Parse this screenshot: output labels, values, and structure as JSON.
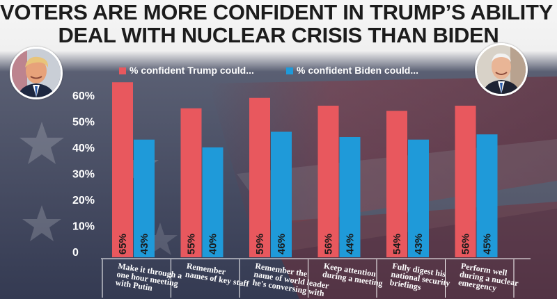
{
  "headline": {
    "line1": "VOTERS ARE MORE CONFIDENT IN TRUMP’S ABILITY TO",
    "line2": "DEAL WITH NUCLEAR CRISIS THAN BIDEN"
  },
  "colors": {
    "trump": "#e8585e",
    "biden": "#1f9ad9",
    "background_top": "#f4f4f4",
    "background_flag_blue": "#2d3757",
    "background_flag_red": "#7a2c35"
  },
  "icons": [
    "trump-portrait-icon",
    "biden-portrait-icon"
  ],
  "chart_data": {
    "type": "bar",
    "title": "",
    "xlabel": "",
    "ylabel": "",
    "ylim": [
      0,
      60
    ],
    "y_ticks": [
      "0",
      "10%",
      "20%",
      "30%",
      "40%",
      "50%",
      "60%"
    ],
    "y_tick_values": [
      0,
      10,
      20,
      30,
      40,
      50,
      60
    ],
    "grid": false,
    "legend_position": "top-center",
    "categories": [
      [
        "Make it through a",
        "one hour meeting",
        "with Putin"
      ],
      [
        "Remember",
        "names of key staff"
      ],
      [
        "Remember the",
        "name of world leader",
        "he's conversing with"
      ],
      [
        "Keep attention",
        "during a meeting"
      ],
      [
        "Fully digest his",
        "national security",
        "briefings"
      ],
      [
        "Perform well",
        "during a nuclear",
        "emergency"
      ]
    ],
    "series": [
      {
        "name": "% confident Trump could...",
        "color": "#e8585e",
        "values": [
          65,
          55,
          59,
          56,
          54,
          56
        ],
        "labels": [
          "65%",
          "55%",
          "59%",
          "56%",
          "54%",
          "56%"
        ]
      },
      {
        "name": "% confident Biden could...",
        "color": "#1f9ad9",
        "values": [
          43,
          40,
          46,
          44,
          43,
          45
        ],
        "labels": [
          "43%",
          "40%",
          "46%",
          "44%",
          "43%",
          "45%"
        ]
      }
    ]
  }
}
